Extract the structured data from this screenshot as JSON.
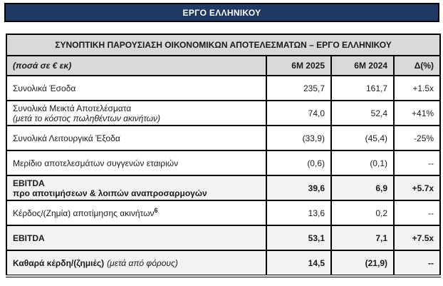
{
  "banner": {
    "title": "ΕΡΓΟ ΕΛΛΗΝΙΚΟΥ"
  },
  "table": {
    "title": "ΣΥΝΟΠΤΙΚΗ ΠΑΡΟΥΣΙΑΣΗ ΟΙΚΟΝΟΜΙΚΩΝ ΑΠΟΤΕΛΕΣΜΑΤΩΝ – ΕΡΓΟ ΕΛΛΗΝΙΚΟΥ",
    "unit_label": "(ποσά σε € εκ)",
    "columns": [
      "6M 2025",
      "6M 2024",
      "Δ(%)"
    ],
    "rows": [
      {
        "label": "Συνολικά Έσοδα",
        "sup": "",
        "tail": "",
        "line2": "",
        "line2_style": "",
        "values": [
          "235,7",
          "161,7",
          "+1.5x"
        ],
        "bold": false,
        "shaded": false
      },
      {
        "label": "Συνολικά Μεικτά Αποτελέσματα",
        "sup": "",
        "tail": "",
        "line2": "(μετά το κόστος πωληθέντων ακινήτων)",
        "line2_style": "italic",
        "values": [
          "74,0",
          "52,4",
          "+41%"
        ],
        "bold": false,
        "shaded": false
      },
      {
        "label": "Συνολικά Λειτουργικά Έξοδα",
        "sup": "",
        "tail": "",
        "line2": "",
        "line2_style": "",
        "values": [
          "(33,9)",
          "(45,4)",
          "-25%"
        ],
        "bold": false,
        "shaded": false
      },
      {
        "label": "Μερίδιο αποτελεσμάτων συγγενών εταιριών",
        "sup": "",
        "tail": "",
        "line2": "",
        "line2_style": "",
        "values": [
          "(0,6)",
          "(0,1)",
          "--"
        ],
        "bold": false,
        "shaded": false
      },
      {
        "label": "EBITDA",
        "sup": "",
        "tail": "",
        "line2": "προ αποτιμήσεων & λοιπών αναπροσαρμογών",
        "line2_style": "bold",
        "values": [
          "39,6",
          "6,9",
          "+5.7x"
        ],
        "bold": true,
        "shaded": true
      },
      {
        "label": "Κέρδος/(Ζημία) αποτίμησης ακινήτων",
        "sup": "6",
        "tail": "",
        "line2": "",
        "line2_style": "",
        "values": [
          "13,6",
          "0,2",
          "--"
        ],
        "bold": false,
        "shaded": false
      },
      {
        "label": "EBITDA",
        "sup": "",
        "tail": "",
        "line2": "",
        "line2_style": "",
        "values": [
          "53,1",
          "7,1",
          "+7.5x"
        ],
        "bold": true,
        "shaded": true
      },
      {
        "label": "Καθαρά κέρδη/(ζημιές)",
        "sup": "",
        "tail": "(μετά από φόρους)",
        "line2": "",
        "line2_style": "",
        "values": [
          "14,5",
          "(21,9)",
          "--"
        ],
        "bold": true,
        "shaded": true
      }
    ]
  },
  "colors": {
    "banner_bg": "#1F3864",
    "banner_text": "#FFFFFF",
    "header_bg": "#D9D9D9",
    "row_shade_bg": "#F2F2F2",
    "border": "#000000"
  }
}
